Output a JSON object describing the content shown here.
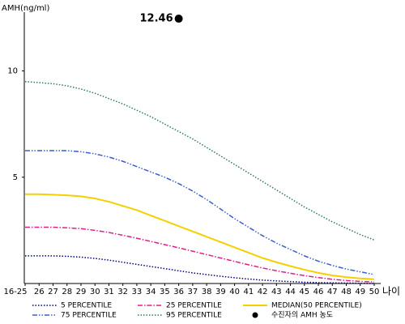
{
  "chart_data": {
    "type": "line",
    "y_label": "AMH(ng/ml)",
    "x_label": "나이",
    "categories": [
      "16-25",
      "26",
      "27",
      "28",
      "29",
      "30",
      "31",
      "32",
      "33",
      "34",
      "35",
      "36",
      "37",
      "38",
      "39",
      "40",
      "41",
      "42",
      "43",
      "44",
      "45",
      "46",
      "47",
      "48",
      "49",
      "50"
    ],
    "ylim": [
      0,
      12.5
    ],
    "yticks": [
      5,
      10
    ],
    "series": [
      {
        "name": "5 PERCENTILE",
        "color": "#000080",
        "style": "dotted",
        "values": [
          1.3,
          1.3,
          1.3,
          1.28,
          1.24,
          1.18,
          1.1,
          1.0,
          0.9,
          0.8,
          0.7,
          0.6,
          0.5,
          0.42,
          0.34,
          0.27,
          0.21,
          0.16,
          0.12,
          0.09,
          0.06,
          0.04,
          0.03,
          0.02,
          0.01,
          0.0
        ]
      },
      {
        "name": "75 PERCENTILE",
        "color": "#3a5fcd",
        "style": "dashdotdot",
        "values": [
          6.25,
          6.25,
          6.25,
          6.25,
          6.2,
          6.1,
          5.95,
          5.75,
          5.5,
          5.25,
          5.0,
          4.7,
          4.35,
          3.95,
          3.5,
          3.05,
          2.65,
          2.25,
          1.9,
          1.6,
          1.3,
          1.05,
          0.85,
          0.68,
          0.55,
          0.42
        ]
      },
      {
        "name": "25 PERCENTILE",
        "color": "#e0208a",
        "style": "dashdot",
        "values": [
          2.65,
          2.65,
          2.65,
          2.62,
          2.58,
          2.5,
          2.4,
          2.27,
          2.13,
          1.98,
          1.83,
          1.68,
          1.52,
          1.36,
          1.2,
          1.04,
          0.88,
          0.73,
          0.6,
          0.48,
          0.37,
          0.28,
          0.2,
          0.14,
          0.1,
          0.07
        ]
      },
      {
        "name": "95 PERCENTILE",
        "color": "#2e7d4f",
        "style": "dotted",
        "values": [
          9.5,
          9.45,
          9.4,
          9.3,
          9.15,
          8.95,
          8.7,
          8.45,
          8.15,
          7.85,
          7.5,
          7.15,
          6.8,
          6.4,
          6.0,
          5.6,
          5.2,
          4.8,
          4.4,
          4.0,
          3.6,
          3.25,
          2.9,
          2.6,
          2.3,
          2.05
        ]
      },
      {
        "name": "MEDIAN(50 PERCENTILE)",
        "color": "#f5d000",
        "style": "solid",
        "values": [
          4.2,
          4.2,
          4.18,
          4.15,
          4.1,
          4.0,
          3.85,
          3.65,
          3.45,
          3.2,
          2.95,
          2.7,
          2.45,
          2.2,
          1.95,
          1.7,
          1.45,
          1.2,
          1.0,
          0.82,
          0.65,
          0.5,
          0.38,
          0.3,
          0.24,
          0.2
        ]
      }
    ],
    "point": {
      "name": "수진자의 AMH 농도",
      "category": "36",
      "value": 12.46,
      "color": "#000000"
    }
  }
}
